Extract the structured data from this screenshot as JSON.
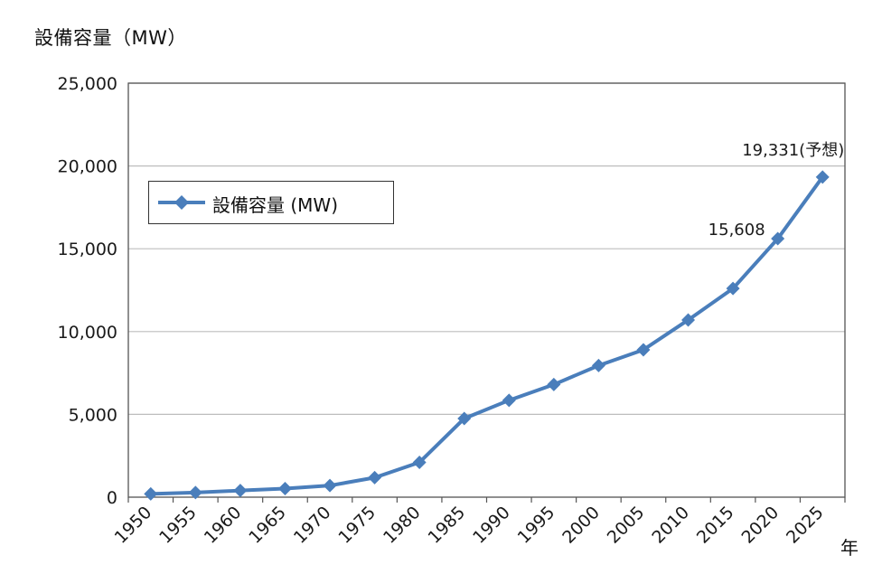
{
  "chart_data": {
    "type": "line",
    "ylabel": "設備容量（MW）",
    "xunit": "年",
    "ylim": [
      0,
      25000
    ],
    "yticks": [
      0,
      5000,
      10000,
      15000,
      20000,
      25000
    ],
    "ytick_labels": [
      "0",
      "5,000",
      "10,000",
      "15,000",
      "20,000",
      "25,000"
    ],
    "categories": [
      "1950",
      "1955",
      "1960",
      "1965",
      "1970",
      "1975",
      "1980",
      "1985",
      "1990",
      "1995",
      "2000",
      "2005",
      "2010",
      "2015",
      "2020",
      "2025"
    ],
    "series": [
      {
        "name": "設備容量 (MW)",
        "color": "#4A7EBB",
        "values": [
          200,
          280,
          400,
          520,
          700,
          1180,
          2100,
          4750,
          5850,
          6800,
          7950,
          8900,
          10700,
          12600,
          15608,
          19331
        ]
      }
    ],
    "annotations": [
      {
        "text": "15,608",
        "category": "2020",
        "value": 15608
      },
      {
        "text": "19,331(予想)",
        "category": "2025",
        "value": 19331
      }
    ],
    "grid": "horizontal",
    "legend": "upper-left"
  }
}
